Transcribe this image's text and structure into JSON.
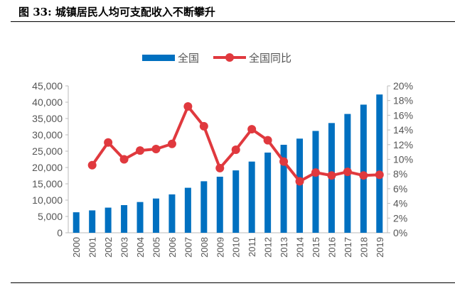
{
  "figure_title": "图 33: 城镇居民人均可支配收入不断攀升",
  "chart_data": {
    "type": "bar+line",
    "categories": [
      "2000",
      "2001",
      "2002",
      "2003",
      "2004",
      "2005",
      "2006",
      "2007",
      "2008",
      "2009",
      "2010",
      "2011",
      "2012",
      "2013",
      "2014",
      "2015",
      "2016",
      "2017",
      "2018",
      "2019"
    ],
    "series": [
      {
        "name": "全国",
        "type": "bar",
        "axis": "left",
        "color": "#0070C0",
        "values": [
          6280,
          6860,
          7703,
          8472,
          9422,
          10493,
          11759,
          13786,
          15781,
          17175,
          19109,
          21810,
          24565,
          26955,
          28844,
          31195,
          33616,
          36396,
          39251,
          42359
        ]
      },
      {
        "name": "全国同比",
        "type": "line",
        "axis": "right",
        "color": "#E0393E",
        "values": [
          null,
          9.2,
          12.3,
          10.0,
          11.2,
          11.4,
          12.1,
          17.2,
          14.5,
          8.8,
          11.3,
          14.1,
          12.6,
          9.7,
          7.0,
          8.2,
          7.8,
          8.3,
          7.8,
          7.9
        ]
      }
    ],
    "left_axis": {
      "ylim": [
        0,
        45000
      ],
      "ticks": [
        "0",
        "5,000",
        "10,000",
        "15,000",
        "20,000",
        "25,000",
        "30,000",
        "35,000",
        "40,000",
        "45,000"
      ]
    },
    "right_axis": {
      "ylim": [
        0,
        20
      ],
      "ticks": [
        "0%",
        "2%",
        "4%",
        "6%",
        "8%",
        "10%",
        "12%",
        "14%",
        "16%",
        "18%",
        "20%"
      ]
    },
    "legend_position": "top-center",
    "grid": false
  }
}
